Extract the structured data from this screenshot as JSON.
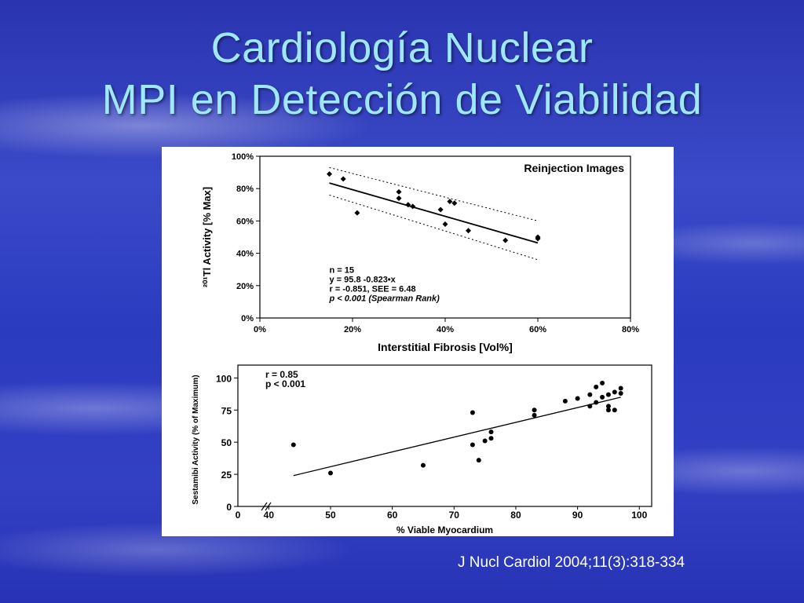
{
  "slide": {
    "title_line1": "Cardiología Nuclear",
    "title_line2": "MPI en Detección de Viabilidad",
    "citation": "J Nucl Cardiol 2004;11(3):318-334"
  },
  "colors": {
    "title": "#9fe6ff",
    "background": "#2e3cc0",
    "citation": "#ffffff"
  },
  "chart_data": [
    {
      "type": "scatter",
      "title": "Reinjection Images",
      "xlabel": "Interstitial Fibrosis   [Vol%]",
      "ylabel": "²⁰¹Tl Activity   [% Max]",
      "xlim": [
        0,
        80
      ],
      "ylim": [
        0,
        100
      ],
      "x_ticks": [
        "0%",
        "20%",
        "40%",
        "60%",
        "80%"
      ],
      "y_ticks": [
        "0%",
        "20%",
        "40%",
        "60%",
        "80%",
        "100%"
      ],
      "x_tick_values": [
        0,
        20,
        40,
        60,
        80
      ],
      "y_tick_values": [
        0,
        20,
        40,
        60,
        80,
        100
      ],
      "points": [
        [
          15,
          89
        ],
        [
          18,
          86
        ],
        [
          21,
          65
        ],
        [
          30,
          78
        ],
        [
          30,
          74
        ],
        [
          32,
          70
        ],
        [
          33,
          69
        ],
        [
          39,
          67
        ],
        [
          40,
          58
        ],
        [
          41,
          72
        ],
        [
          42,
          71
        ],
        [
          45,
          54
        ],
        [
          53,
          48
        ],
        [
          60,
          50
        ],
        [
          60,
          49
        ]
      ],
      "regression": {
        "slope": -0.823,
        "intercept": 95.8,
        "x_range": [
          15,
          60
        ]
      },
      "confidence_band": {
        "upper": [
          [
            15,
            93
          ],
          [
            60,
            60
          ]
        ],
        "lower": [
          [
            15,
            76
          ],
          [
            60,
            36
          ]
        ]
      },
      "annotations": [
        "n = 15",
        "y = 95.8 -0.823•x",
        "r = -0.851, SEE = 6.48",
        "p  < 0.001 (Spearman Rank)"
      ],
      "grid": false
    },
    {
      "type": "scatter",
      "xlabel": "% Viable Myocardium",
      "ylabel": "Sestamibi Activity (% of Maximum)",
      "xlim": [
        35,
        102
      ],
      "ylim": [
        0,
        110
      ],
      "x_ticks": [
        "0",
        "40",
        "50",
        "60",
        "70",
        "80",
        "90",
        "100"
      ],
      "y_ticks": [
        "0",
        "25",
        "50",
        "75",
        "100"
      ],
      "x_tick_values": [
        40,
        50,
        60,
        70,
        80,
        90,
        100
      ],
      "y_tick_values": [
        0,
        25,
        50,
        75,
        100
      ],
      "axis_break": true,
      "points": [
        [
          44,
          48
        ],
        [
          50,
          26
        ],
        [
          65,
          32
        ],
        [
          73,
          73
        ],
        [
          73,
          48
        ],
        [
          74,
          36
        ],
        [
          75,
          51
        ],
        [
          76,
          53
        ],
        [
          76,
          58
        ],
        [
          83,
          75
        ],
        [
          83,
          71
        ],
        [
          88,
          82
        ],
        [
          90,
          84
        ],
        [
          92,
          87
        ],
        [
          92,
          78
        ],
        [
          93,
          93
        ],
        [
          93,
          81
        ],
        [
          94,
          96
        ],
        [
          94,
          85
        ],
        [
          95,
          87
        ],
        [
          95,
          78
        ],
        [
          95,
          75
        ],
        [
          96,
          89
        ],
        [
          96,
          75
        ],
        [
          97,
          88
        ],
        [
          97,
          92
        ]
      ],
      "regression": {
        "x_range": [
          44,
          97
        ],
        "y_range": [
          24,
          85
        ]
      },
      "annotations": [
        "r = 0.85",
        "p < 0.001"
      ],
      "grid": false
    }
  ]
}
